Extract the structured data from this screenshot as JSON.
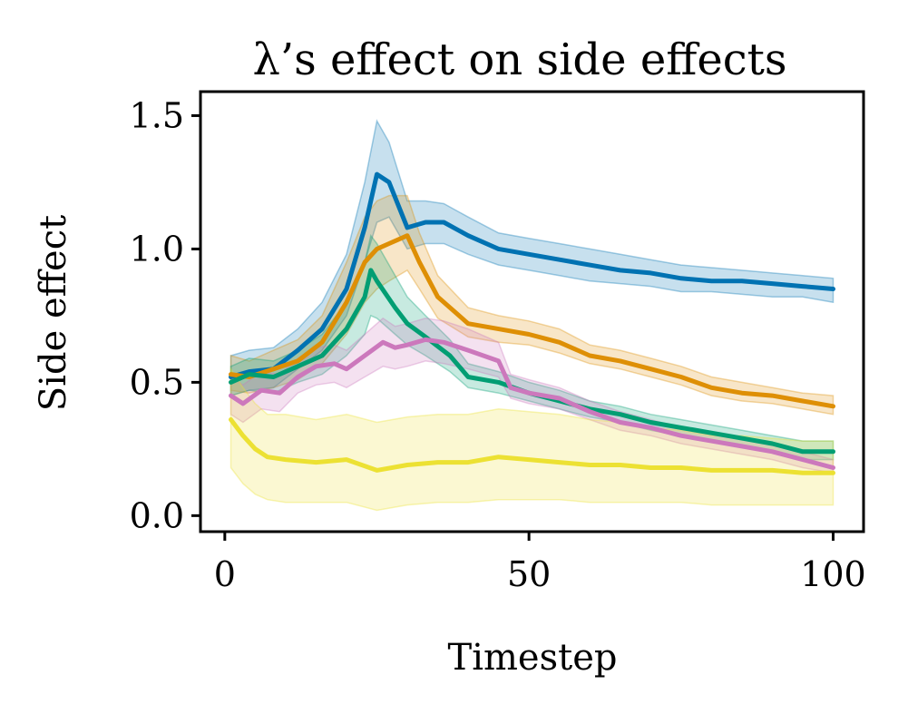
{
  "chart_data": {
    "type": "line",
    "title": "λ’s effect on side effects",
    "xlabel": "Timestep",
    "ylabel": "Side effect",
    "xlim": [
      -4,
      105
    ],
    "ylim": [
      -0.06,
      1.59
    ],
    "xticks": [
      0,
      50,
      100
    ],
    "xtick_labels": [
      "0",
      "50",
      "100"
    ],
    "yticks": [
      0.0,
      0.5,
      1.0,
      1.5
    ],
    "ytick_labels": [
      "0.0",
      "0.5",
      "1.0",
      "1.5"
    ],
    "grid": false,
    "legend": "none",
    "shaded_band": "spread around each line",
    "series": [
      {
        "color": "#0072b2",
        "x": [
          1,
          4,
          8,
          12,
          16,
          20,
          23,
          25,
          27,
          30,
          33,
          36,
          40,
          45,
          50,
          55,
          60,
          65,
          70,
          75,
          80,
          85,
          90,
          95,
          100
        ],
        "y": [
          0.52,
          0.54,
          0.55,
          0.62,
          0.7,
          0.85,
          1.08,
          1.28,
          1.25,
          1.08,
          1.1,
          1.1,
          1.05,
          1.0,
          0.98,
          0.96,
          0.94,
          0.92,
          0.91,
          0.89,
          0.88,
          0.88,
          0.87,
          0.86,
          0.85
        ],
        "lower": [
          0.45,
          0.47,
          0.48,
          0.55,
          0.62,
          0.75,
          0.95,
          1.1,
          1.12,
          1.0,
          1.02,
          1.02,
          0.98,
          0.94,
          0.92,
          0.9,
          0.88,
          0.87,
          0.86,
          0.84,
          0.84,
          0.83,
          0.82,
          0.82,
          0.8
        ],
        "upper": [
          0.6,
          0.62,
          0.63,
          0.7,
          0.8,
          0.98,
          1.25,
          1.48,
          1.4,
          1.18,
          1.18,
          1.17,
          1.12,
          1.06,
          1.04,
          1.02,
          1.0,
          0.98,
          0.96,
          0.94,
          0.93,
          0.92,
          0.91,
          0.9,
          0.89
        ]
      },
      {
        "color": "#de8f05",
        "x": [
          1,
          4,
          8,
          12,
          16,
          20,
          23,
          25,
          27,
          30,
          32,
          35,
          40,
          45,
          50,
          55,
          60,
          65,
          70,
          75,
          80,
          85,
          90,
          95,
          100
        ],
        "y": [
          0.53,
          0.52,
          0.55,
          0.58,
          0.65,
          0.8,
          0.95,
          1.0,
          1.02,
          1.05,
          0.95,
          0.82,
          0.72,
          0.7,
          0.68,
          0.65,
          0.6,
          0.58,
          0.55,
          0.52,
          0.48,
          0.46,
          0.45,
          0.43,
          0.41
        ],
        "lower": [
          0.47,
          0.46,
          0.48,
          0.51,
          0.57,
          0.68,
          0.8,
          0.85,
          0.88,
          0.92,
          0.85,
          0.74,
          0.67,
          0.65,
          0.64,
          0.61,
          0.57,
          0.55,
          0.52,
          0.49,
          0.45,
          0.43,
          0.42,
          0.4,
          0.38
        ],
        "upper": [
          0.6,
          0.58,
          0.62,
          0.66,
          0.75,
          0.95,
          1.12,
          1.18,
          1.2,
          1.2,
          1.06,
          0.9,
          0.78,
          0.75,
          0.73,
          0.7,
          0.64,
          0.62,
          0.59,
          0.56,
          0.52,
          0.5,
          0.48,
          0.46,
          0.45
        ]
      },
      {
        "color": "#029e73",
        "x": [
          1,
          4,
          8,
          12,
          16,
          20,
          23,
          24,
          25,
          28,
          30,
          33,
          37,
          40,
          45,
          50,
          55,
          60,
          65,
          70,
          75,
          80,
          85,
          90,
          95,
          100
        ],
        "y": [
          0.5,
          0.53,
          0.52,
          0.56,
          0.6,
          0.7,
          0.82,
          0.92,
          0.88,
          0.78,
          0.72,
          0.67,
          0.6,
          0.52,
          0.5,
          0.46,
          0.43,
          0.4,
          0.38,
          0.35,
          0.33,
          0.31,
          0.29,
          0.27,
          0.24,
          0.24
        ],
        "lower": [
          0.45,
          0.47,
          0.46,
          0.5,
          0.53,
          0.6,
          0.68,
          0.75,
          0.74,
          0.68,
          0.64,
          0.6,
          0.54,
          0.48,
          0.46,
          0.43,
          0.4,
          0.37,
          0.35,
          0.32,
          0.3,
          0.28,
          0.26,
          0.24,
          0.21,
          0.21
        ],
        "upper": [
          0.56,
          0.59,
          0.58,
          0.62,
          0.68,
          0.8,
          0.95,
          1.05,
          1.02,
          0.9,
          0.82,
          0.75,
          0.66,
          0.57,
          0.54,
          0.5,
          0.47,
          0.43,
          0.41,
          0.38,
          0.36,
          0.34,
          0.32,
          0.3,
          0.28,
          0.28
        ]
      },
      {
        "color": "#cc78bc",
        "x": [
          1,
          3,
          6,
          9,
          12,
          15,
          18,
          20,
          23,
          26,
          28,
          30,
          33,
          36,
          40,
          45,
          47,
          50,
          55,
          60,
          65,
          70,
          75,
          80,
          85,
          90,
          95,
          100
        ],
        "y": [
          0.45,
          0.42,
          0.47,
          0.46,
          0.52,
          0.56,
          0.57,
          0.55,
          0.6,
          0.65,
          0.63,
          0.64,
          0.66,
          0.65,
          0.62,
          0.58,
          0.48,
          0.46,
          0.44,
          0.39,
          0.35,
          0.33,
          0.3,
          0.28,
          0.26,
          0.24,
          0.21,
          0.18
        ],
        "lower": [
          0.38,
          0.35,
          0.4,
          0.39,
          0.46,
          0.49,
          0.5,
          0.48,
          0.52,
          0.56,
          0.55,
          0.56,
          0.58,
          0.57,
          0.55,
          0.52,
          0.44,
          0.42,
          0.4,
          0.36,
          0.32,
          0.3,
          0.27,
          0.25,
          0.23,
          0.21,
          0.18,
          0.16
        ],
        "upper": [
          0.52,
          0.49,
          0.54,
          0.53,
          0.59,
          0.63,
          0.64,
          0.62,
          0.68,
          0.74,
          0.71,
          0.72,
          0.74,
          0.73,
          0.7,
          0.65,
          0.53,
          0.51,
          0.48,
          0.43,
          0.39,
          0.36,
          0.33,
          0.31,
          0.29,
          0.27,
          0.24,
          0.21
        ]
      },
      {
        "color": "#ece133",
        "x": [
          1,
          3,
          5,
          7,
          10,
          15,
          20,
          25,
          30,
          35,
          40,
          45,
          50,
          55,
          60,
          65,
          70,
          75,
          80,
          85,
          90,
          95,
          100
        ],
        "y": [
          0.36,
          0.3,
          0.25,
          0.22,
          0.21,
          0.2,
          0.21,
          0.17,
          0.19,
          0.2,
          0.2,
          0.22,
          0.21,
          0.2,
          0.19,
          0.19,
          0.18,
          0.18,
          0.17,
          0.17,
          0.17,
          0.16,
          0.16
        ],
        "lower": [
          0.18,
          0.12,
          0.08,
          0.06,
          0.05,
          0.05,
          0.05,
          0.02,
          0.04,
          0.05,
          0.05,
          0.06,
          0.06,
          0.06,
          0.05,
          0.05,
          0.05,
          0.05,
          0.04,
          0.04,
          0.04,
          0.04,
          0.04
        ],
        "upper": [
          0.55,
          0.48,
          0.42,
          0.38,
          0.38,
          0.36,
          0.38,
          0.35,
          0.37,
          0.38,
          0.38,
          0.4,
          0.39,
          0.38,
          0.36,
          0.35,
          0.33,
          0.32,
          0.3,
          0.3,
          0.29,
          0.28,
          0.28
        ]
      }
    ]
  }
}
